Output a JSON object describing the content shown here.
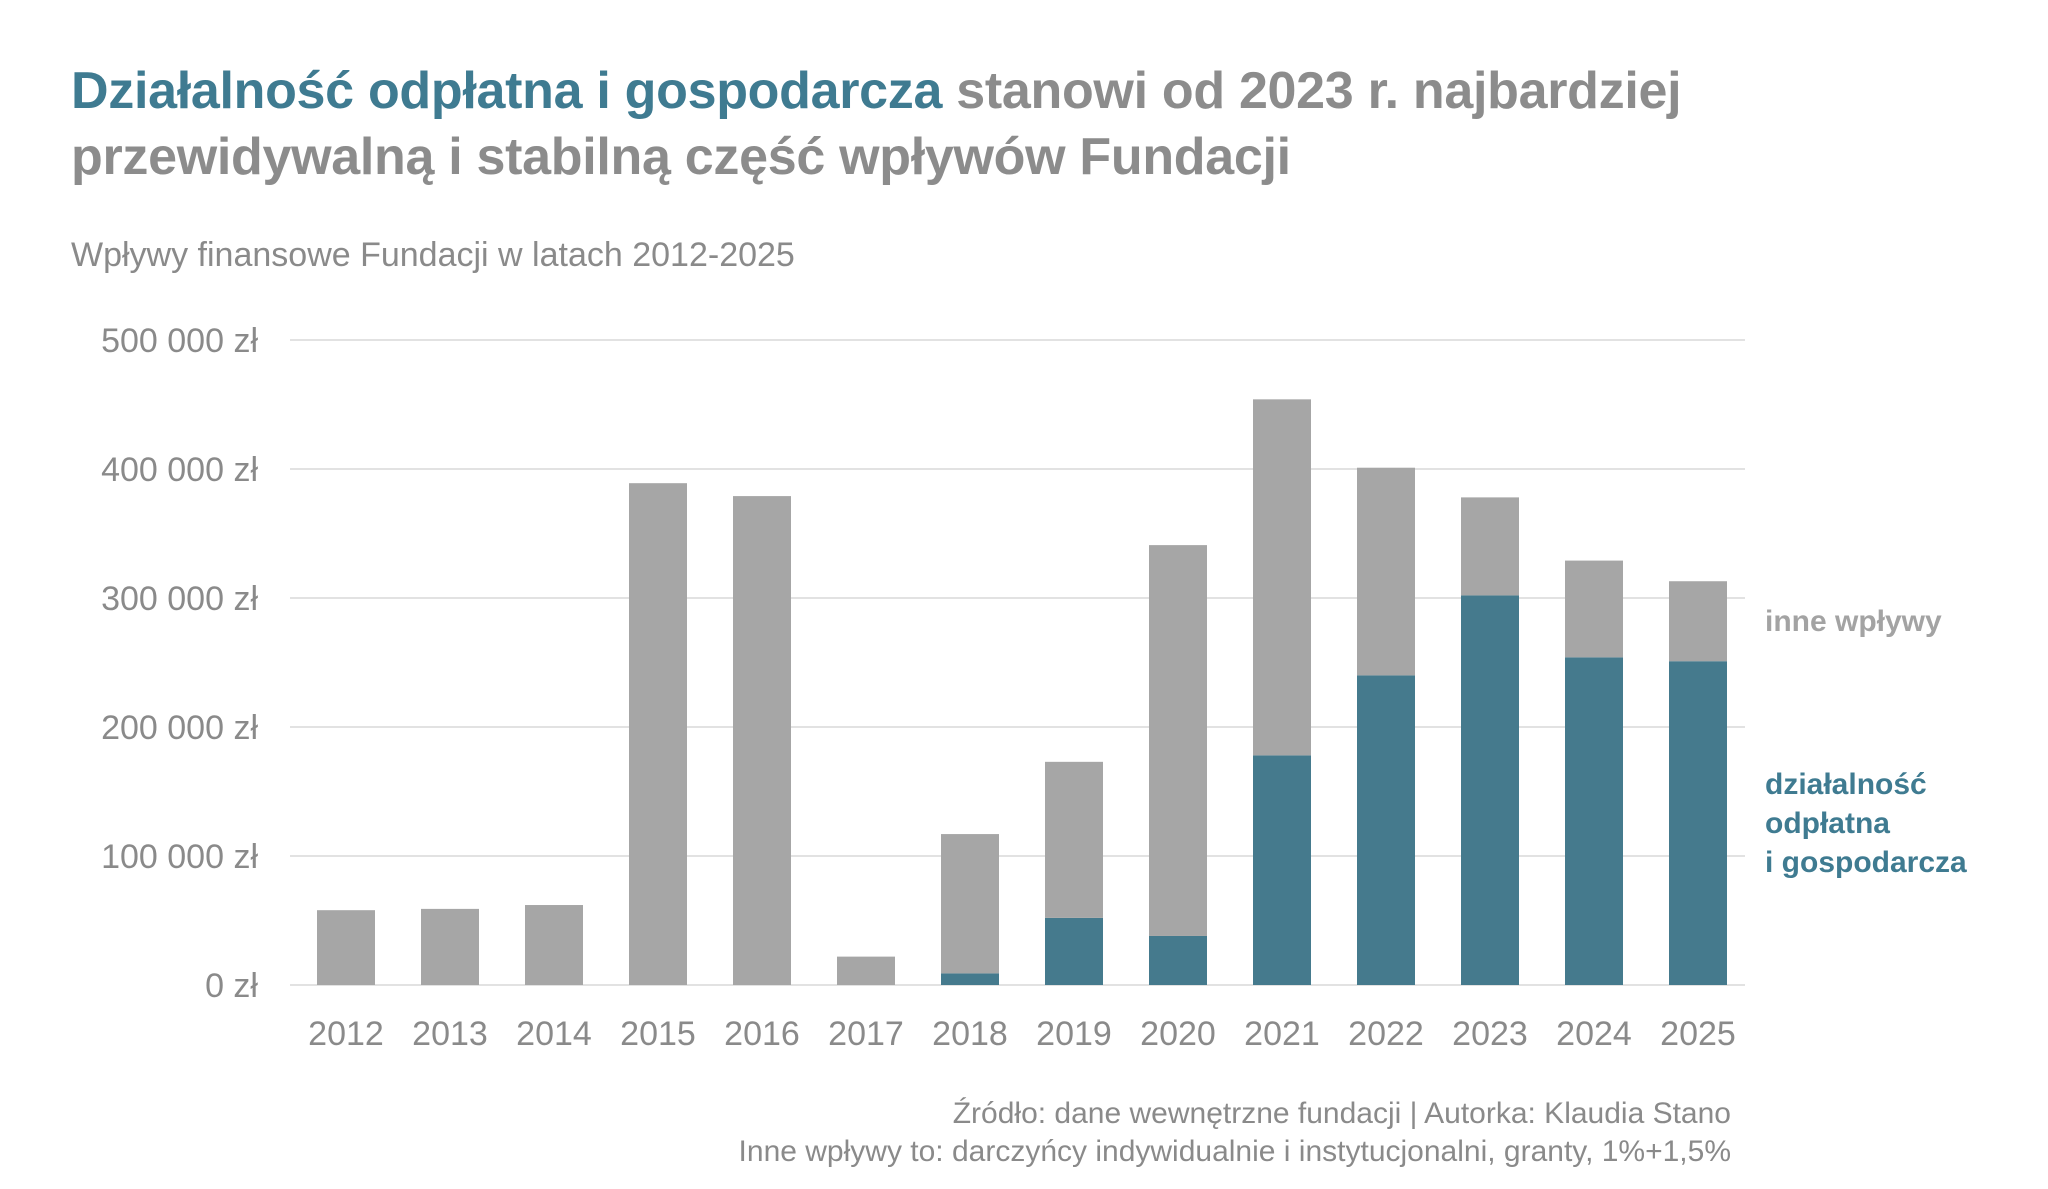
{
  "title": {
    "highlight": "Działalność odpłatna i gospodarcza",
    "rest": " stanowi od 2023 r. najbardziej przewidywalną i stabilną część wpływów Fundacji"
  },
  "subtitle": "Wpływy finansowe Fundacji w latach 2012-2025",
  "colors": {
    "paid": "#457a8d",
    "other": "#a6a6a6",
    "grid": "#d9d9d9",
    "text": "#8a8a8a"
  },
  "chart_data": {
    "type": "bar",
    "stacked": true,
    "title": "Wpływy finansowe Fundacji w latach 2012-2025",
    "xlabel": "",
    "ylabel": "",
    "ylim": [
      0,
      500000
    ],
    "yticks": [
      0,
      100000,
      200000,
      300000,
      400000,
      500000
    ],
    "ytick_labels": [
      "0 zł",
      "100 000 zł",
      "200 000 zł",
      "300 000 zł",
      "400 000 zł",
      "500 000 zł"
    ],
    "grid": true,
    "categories": [
      "2012",
      "2013",
      "2014",
      "2015",
      "2016",
      "2017",
      "2018",
      "2019",
      "2020",
      "2021",
      "2022",
      "2023",
      "2024",
      "2025"
    ],
    "series": [
      {
        "name": "działalność odpłatna i gospodarcza",
        "color": "#457a8d",
        "values": [
          0,
          0,
          0,
          0,
          0,
          0,
          9000,
          52000,
          38000,
          178000,
          240000,
          302000,
          254000,
          251000
        ]
      },
      {
        "name": "inne wpływy",
        "color": "#a6a6a6",
        "values": [
          58000,
          59000,
          62000,
          389000,
          379000,
          22000,
          108000,
          121000,
          303000,
          276000,
          161000,
          76000,
          75000,
          62000
        ]
      }
    ],
    "legend": {
      "placement": "right",
      "other_label": "inne wpływy",
      "paid_label": "działalność\nodpłatna\ni gospodarcza"
    }
  },
  "footer": {
    "source": "Źródło: dane wewnętrzne fundacji | Autorka: Klaudia Stano",
    "note": "Inne wpływy to: darczyńcy indywidualnie i instytucjonalni, granty, 1%+1,5%"
  }
}
